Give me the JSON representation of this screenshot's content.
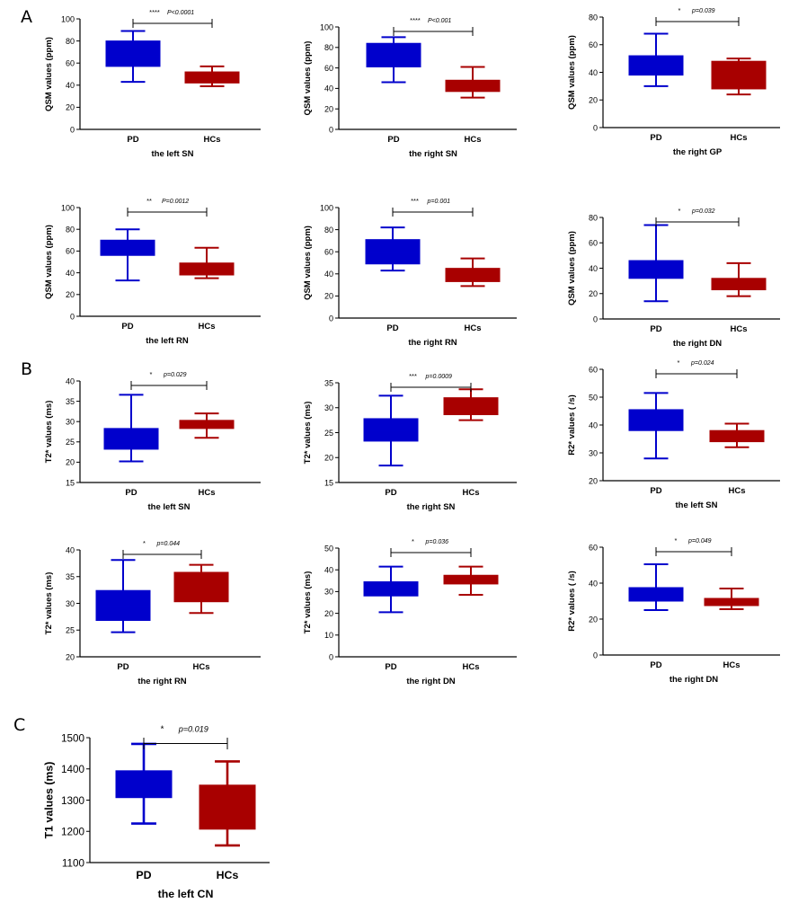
{
  "figure": {
    "panels": [
      {
        "label": "A"
      },
      {
        "label": "B"
      },
      {
        "label": "C"
      }
    ]
  },
  "colors": {
    "pd": "#0000CC",
    "hc": "#A80000"
  },
  "chart_data": [
    {
      "type": "box",
      "panel": "A",
      "ylabel": "QSM values (ppm)",
      "xlabel": "the left SN",
      "categories": [
        "PD",
        "HCs"
      ],
      "yticks": [
        0,
        20,
        40,
        60,
        80,
        100
      ],
      "ylim": [
        0,
        100
      ],
      "sig": "****",
      "p": "P<0.0001",
      "boxes": [
        {
          "min": 43,
          "q1": 57,
          "median": 66,
          "q3": 80,
          "max": 89
        },
        {
          "min": 39,
          "q1": 42,
          "median": 46,
          "q3": 52,
          "max": 57
        }
      ]
    },
    {
      "type": "box",
      "panel": "A",
      "ylabel": "QSM values (ppm)",
      "xlabel": "the right SN",
      "categories": [
        "PD",
        "HCs"
      ],
      "yticks": [
        0,
        20,
        40,
        60,
        80,
        100
      ],
      "ylim": [
        0,
        100
      ],
      "sig": "****",
      "p": "P<0.001",
      "boxes": [
        {
          "min": 46,
          "q1": 61,
          "median": 71,
          "q3": 84,
          "max": 90
        },
        {
          "min": 31,
          "q1": 37,
          "median": 42,
          "q3": 48,
          "max": 61
        }
      ]
    },
    {
      "type": "box",
      "panel": "A",
      "ylabel": "QSM values (ppm)",
      "xlabel": "the right GP",
      "categories": [
        "PD",
        "HCs"
      ],
      "yticks": [
        0,
        20,
        40,
        60,
        80
      ],
      "ylim": [
        0,
        80
      ],
      "sig": "*",
      "p": "p=0.039",
      "boxes": [
        {
          "min": 30,
          "q1": 38,
          "median": 44,
          "q3": 52,
          "max": 68
        },
        {
          "min": 24,
          "q1": 28,
          "median": 37,
          "q3": 48,
          "max": 50
        }
      ]
    },
    {
      "type": "box",
      "panel": "A",
      "ylabel": "QSM values (ppm)",
      "xlabel": "the left RN",
      "categories": [
        "PD",
        "HCs"
      ],
      "yticks": [
        0,
        20,
        40,
        60,
        80,
        100
      ],
      "ylim": [
        0,
        100
      ],
      "sig": "**",
      "p": "P=0.0012",
      "boxes": [
        {
          "min": 33,
          "q1": 56,
          "median": 62,
          "q3": 70,
          "max": 80
        },
        {
          "min": 35,
          "q1": 38,
          "median": 43,
          "q3": 49,
          "max": 63
        }
      ]
    },
    {
      "type": "box",
      "panel": "A",
      "ylabel": "QSM values (ppm)",
      "xlabel": "the right RN",
      "categories": [
        "PD",
        "HCs"
      ],
      "yticks": [
        0,
        20,
        40,
        60,
        80,
        100
      ],
      "ylim": [
        0,
        100
      ],
      "sig": "***",
      "p": "p=0.001",
      "boxes": [
        {
          "min": 43,
          "q1": 49,
          "median": 60,
          "q3": 71,
          "max": 82
        },
        {
          "min": 29,
          "q1": 33,
          "median": 38,
          "q3": 45,
          "max": 54
        }
      ]
    },
    {
      "type": "box",
      "panel": "A",
      "ylabel": "QSM values (ppm)",
      "xlabel": "the right DN",
      "categories": [
        "PD",
        "HCs"
      ],
      "yticks": [
        0,
        20,
        40,
        60,
        80
      ],
      "ylim": [
        0,
        80
      ],
      "sig": "*",
      "p": "p=0.032",
      "boxes": [
        {
          "min": 14,
          "q1": 32,
          "median": 39,
          "q3": 46,
          "max": 74
        },
        {
          "min": 18,
          "q1": 23,
          "median": 27,
          "q3": 32,
          "max": 44
        }
      ]
    },
    {
      "type": "box",
      "panel": "B",
      "ylabel": "T2* values (ms)",
      "xlabel": "the left SN",
      "categories": [
        "PD",
        "HCs"
      ],
      "yticks": [
        15,
        20,
        25,
        30,
        35,
        40
      ],
      "ylim": [
        15,
        40
      ],
      "sig": "*",
      "p": "p=0.029",
      "boxes": [
        {
          "min": 20.2,
          "q1": 23.2,
          "median": 25.5,
          "q3": 28.3,
          "max": 36.6
        },
        {
          "min": 26.0,
          "q1": 28.3,
          "median": 29.4,
          "q3": 30.3,
          "max": 32.0
        }
      ]
    },
    {
      "type": "box",
      "panel": "B",
      "ylabel": "T2* values (ms)",
      "xlabel": "the right SN",
      "categories": [
        "PD",
        "HCs"
      ],
      "yticks": [
        15,
        20,
        25,
        30,
        35
      ],
      "ylim": [
        15,
        35
      ],
      "sig": "***",
      "p": "p=0.0009",
      "boxes": [
        {
          "min": 18.4,
          "q1": 23.3,
          "median": 25.4,
          "q3": 27.8,
          "max": 32.4
        },
        {
          "min": 27.5,
          "q1": 28.6,
          "median": 30.6,
          "q3": 32.0,
          "max": 33.7
        }
      ]
    },
    {
      "type": "box",
      "panel": "B",
      "ylabel": "R2* values  ( /s)",
      "xlabel": "the left SN",
      "categories": [
        "PD",
        "HCs"
      ],
      "yticks": [
        20,
        30,
        40,
        50,
        60
      ],
      "ylim": [
        20,
        60
      ],
      "sig": "*",
      "p": "p=0.024",
      "boxes": [
        {
          "min": 28,
          "q1": 38,
          "median": 41,
          "q3": 45.5,
          "max": 51.5
        },
        {
          "min": 32,
          "q1": 34,
          "median": 36,
          "q3": 38,
          "max": 40.5
        }
      ]
    },
    {
      "type": "box",
      "panel": "B",
      "ylabel": "T2* values (ms)",
      "xlabel": "the right RN",
      "categories": [
        "PD",
        "HCs"
      ],
      "yticks": [
        20,
        25,
        30,
        35,
        40
      ],
      "ylim": [
        20,
        40
      ],
      "sig": "*",
      "p": "p=0.044",
      "boxes": [
        {
          "min": 24.6,
          "q1": 26.8,
          "median": 29.5,
          "q3": 32.4,
          "max": 38.1
        },
        {
          "min": 28.2,
          "q1": 30.3,
          "median": 32.9,
          "q3": 35.8,
          "max": 37.2
        }
      ]
    },
    {
      "type": "box",
      "panel": "B",
      "ylabel": "T2* values (ms)",
      "xlabel": "the right DN",
      "categories": [
        "PD",
        "HCs"
      ],
      "yticks": [
        0,
        10,
        20,
        30,
        40,
        50
      ],
      "ylim": [
        0,
        50
      ],
      "sig": "*",
      "p": "p=0.036",
      "boxes": [
        {
          "min": 20.5,
          "q1": 28,
          "median": 31,
          "q3": 34.5,
          "max": 41.5
        },
        {
          "min": 28.5,
          "q1": 33.5,
          "median": 35.5,
          "q3": 37.5,
          "max": 41.5
        }
      ]
    },
    {
      "type": "box",
      "panel": "B",
      "ylabel": "R2* values  ( /s)",
      "xlabel": "the right DN",
      "categories": [
        "PD",
        "HCs"
      ],
      "yticks": [
        0,
        20,
        40,
        60
      ],
      "ylim": [
        0,
        60
      ],
      "sig": "*",
      "p": "p=0.049",
      "boxes": [
        {
          "min": 25,
          "q1": 30,
          "median": 33,
          "q3": 37.5,
          "max": 50.5
        },
        {
          "min": 25.5,
          "q1": 27.5,
          "median": 29.5,
          "q3": 31.5,
          "max": 37
        }
      ]
    },
    {
      "type": "box",
      "panel": "C",
      "ylabel": "T1 values (ms)",
      "xlabel": "the left CN",
      "categories": [
        "PD",
        "HCs"
      ],
      "yticks": [
        1100,
        1200,
        1300,
        1400,
        1500
      ],
      "ylim": [
        1100,
        1500
      ],
      "sig": "*",
      "p": "p=0.019",
      "boxes": [
        {
          "min": 1225,
          "q1": 1308,
          "median": 1350,
          "q3": 1394,
          "max": 1480
        },
        {
          "min": 1155,
          "q1": 1207,
          "median": 1290,
          "q3": 1348,
          "max": 1424
        }
      ]
    }
  ]
}
